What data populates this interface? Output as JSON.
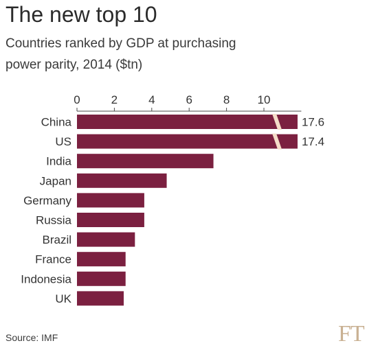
{
  "title": "The new top 10",
  "subtitle": "Countries ranked by GDP at purchasing power parity, 2014 ($tn)",
  "source": "Source: IMF",
  "logo": "FT",
  "colors": {
    "bar": "#7b2040",
    "break": "#f4dcc8",
    "axis": "#4a4a4a",
    "text": "#333333"
  },
  "chart_data": {
    "type": "bar",
    "orientation": "horizontal",
    "categories": [
      "China",
      "US",
      "India",
      "Japan",
      "Germany",
      "Russia",
      "Brazil",
      "France",
      "Indonesia",
      "UK"
    ],
    "values": [
      17.6,
      17.4,
      7.3,
      4.8,
      3.6,
      3.6,
      3.1,
      2.6,
      2.6,
      2.5
    ],
    "value_labels": [
      "17.6",
      "17.4",
      "",
      "",
      "",
      "",
      "",
      "",
      "",
      ""
    ],
    "xticks": [
      "0",
      "2",
      "4",
      "6",
      "8",
      "10"
    ],
    "xlim": [
      0,
      12
    ],
    "axis_break": true,
    "title": "The new top 10",
    "xlabel": "",
    "ylabel": "",
    "grid": false
  }
}
